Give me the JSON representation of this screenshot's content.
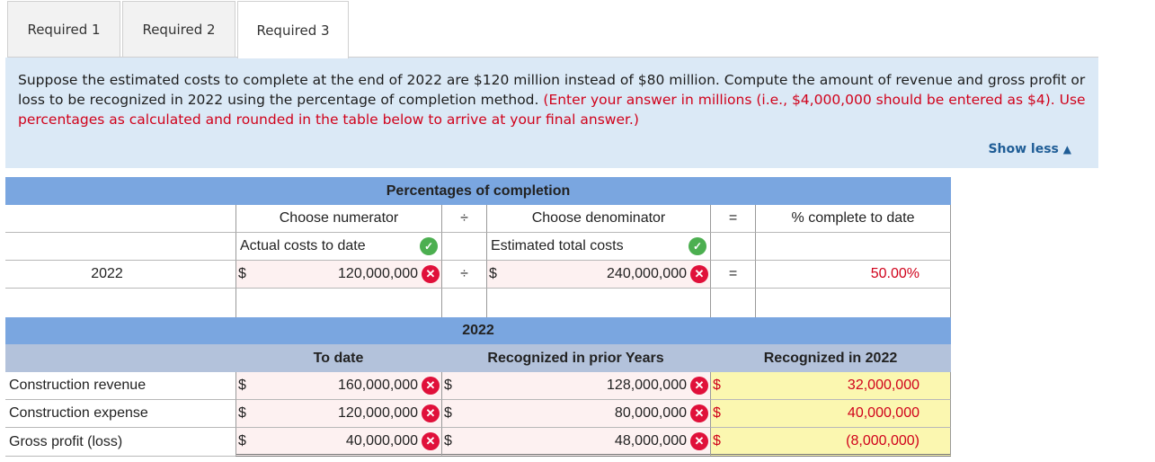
{
  "tabs": [
    {
      "label": "Required 1"
    },
    {
      "label": "Required 2"
    },
    {
      "label": "Required 3"
    }
  ],
  "instructions": {
    "text": "Suppose the estimated costs to complete at the end of 2022 are $120 million instead of $80 million. Compute the amount of revenue and gross profit or loss to be recognized in 2022 using the percentage of completion method.",
    "note": "(Enter your answer in millions (i.e., $4,000,000 should be entered as $4). Use percentages as calculated and rounded in the table below to arrive at your final answer.)",
    "toggle_label": "Show less",
    "toggle_icon": "▲"
  },
  "percent_table": {
    "title": "Percentages of completion",
    "numerator_header": "Choose numerator",
    "divide_sign": "÷",
    "denominator_header": "Choose denominator",
    "equals_sign": "=",
    "result_header": "% complete to date",
    "numerator_choice": "Actual costs to date",
    "denominator_choice": "Estimated total costs",
    "row_label": "2022",
    "dollar": "$",
    "numerator_value": "120,000,000",
    "denominator_value": "240,000,000",
    "result_value": "50.00%"
  },
  "revenue_table": {
    "year_header": "2022",
    "col_to_date": "To date",
    "col_prior": "Recognized in prior Years",
    "col_current": "Recognized in 2022",
    "dollar": "$",
    "rows": [
      {
        "label": "Construction revenue",
        "to_date": "160,000,000",
        "prior": "128,000,000",
        "current": "32,000,000"
      },
      {
        "label": "Construction expense",
        "to_date": "120,000,000",
        "prior": "80,000,000",
        "current": "40,000,000"
      },
      {
        "label": "Gross profit (loss)",
        "to_date": "40,000,000",
        "prior": "48,000,000",
        "current": "(8,000,000)"
      }
    ]
  },
  "icons": {
    "incorrect": "✕",
    "correct": "✓"
  },
  "colors": {
    "header_blue": "#7aa6e0",
    "subheader": "#b3c2db",
    "answer_yellow": "#fbf7b0",
    "error_red": "#e0103a",
    "correct_green": "#4caf50"
  }
}
